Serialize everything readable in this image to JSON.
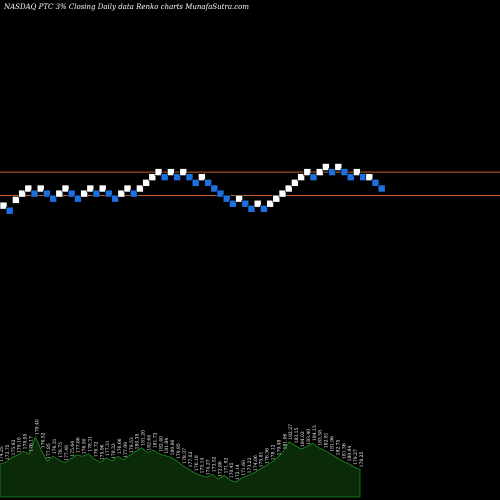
{
  "header": {
    "title": "NASDAQ PTC",
    "subtitle": "3% Closing Daily data Renko charts MunafaSutra.com"
  },
  "colors": {
    "background": "#000000",
    "up_brick": "#ffffff",
    "down_brick": "#1e6fe0",
    "reference_line": "#c0602a",
    "volume_fill": "#0a2a0a",
    "volume_stroke": "#1e8a1e"
  },
  "chart_data": {
    "type": "renko",
    "brick_percent": 3,
    "reference_lines": [
      183.2,
      179.5
    ],
    "ylim": [
      163,
      193
    ],
    "bricks": [
      {
        "dir": "up",
        "value": 177.9
      },
      {
        "dir": "down",
        "value": 177.1
      },
      {
        "dir": "up",
        "value": 178.8
      },
      {
        "dir": "up",
        "value": 179.8
      },
      {
        "dir": "up",
        "value": 180.6
      },
      {
        "dir": "down",
        "value": 179.8
      },
      {
        "dir": "up",
        "value": 180.6
      },
      {
        "dir": "down",
        "value": 179.8
      },
      {
        "dir": "down",
        "value": 179.0
      },
      {
        "dir": "up",
        "value": 179.8
      },
      {
        "dir": "up",
        "value": 180.6
      },
      {
        "dir": "down",
        "value": 179.8
      },
      {
        "dir": "down",
        "value": 179.0
      },
      {
        "dir": "up",
        "value": 179.8
      },
      {
        "dir": "up",
        "value": 180.6
      },
      {
        "dir": "down",
        "value": 179.8
      },
      {
        "dir": "up",
        "value": 180.6
      },
      {
        "dir": "down",
        "value": 179.8
      },
      {
        "dir": "down",
        "value": 179.0
      },
      {
        "dir": "up",
        "value": 179.8
      },
      {
        "dir": "up",
        "value": 180.6
      },
      {
        "dir": "down",
        "value": 179.8
      },
      {
        "dir": "up",
        "value": 180.6
      },
      {
        "dir": "up",
        "value": 181.5
      },
      {
        "dir": "up",
        "value": 182.4
      },
      {
        "dir": "up",
        "value": 183.2
      },
      {
        "dir": "down",
        "value": 182.4
      },
      {
        "dir": "up",
        "value": 183.2
      },
      {
        "dir": "down",
        "value": 182.4
      },
      {
        "dir": "up",
        "value": 183.2
      },
      {
        "dir": "down",
        "value": 182.4
      },
      {
        "dir": "down",
        "value": 181.5
      },
      {
        "dir": "up",
        "value": 182.4
      },
      {
        "dir": "down",
        "value": 181.5
      },
      {
        "dir": "down",
        "value": 180.6
      },
      {
        "dir": "down",
        "value": 179.8
      },
      {
        "dir": "down",
        "value": 179.0
      },
      {
        "dir": "down",
        "value": 178.2
      },
      {
        "dir": "up",
        "value": 179.0
      },
      {
        "dir": "down",
        "value": 178.2
      },
      {
        "dir": "down",
        "value": 177.4
      },
      {
        "dir": "up",
        "value": 178.2
      },
      {
        "dir": "down",
        "value": 177.4
      },
      {
        "dir": "up",
        "value": 178.2
      },
      {
        "dir": "up",
        "value": 179.0
      },
      {
        "dir": "up",
        "value": 179.8
      },
      {
        "dir": "up",
        "value": 180.6
      },
      {
        "dir": "up",
        "value": 181.5
      },
      {
        "dir": "up",
        "value": 182.4
      },
      {
        "dir": "up",
        "value": 183.2
      },
      {
        "dir": "down",
        "value": 182.4
      },
      {
        "dir": "up",
        "value": 183.2
      },
      {
        "dir": "up",
        "value": 184.0
      },
      {
        "dir": "down",
        "value": 183.2
      },
      {
        "dir": "up",
        "value": 184.0
      },
      {
        "dir": "down",
        "value": 183.2
      },
      {
        "dir": "down",
        "value": 182.4
      },
      {
        "dir": "up",
        "value": 183.2
      },
      {
        "dir": "down",
        "value": 182.4
      },
      {
        "dir": "up",
        "value": 182.4
      },
      {
        "dir": "down",
        "value": 181.5
      },
      {
        "dir": "down",
        "value": 180.6
      }
    ],
    "volume": [
      {
        "value": 55,
        "label": "174.25"
      },
      {
        "value": 58,
        "label": "173.75"
      },
      {
        "value": 66,
        "label": "175.92"
      },
      {
        "value": 70,
        "label": "179.10"
      },
      {
        "value": 76,
        "label": "178.05"
      },
      {
        "value": 72,
        "label": "176.17"
      },
      {
        "value": 100,
        "label": "178.40"
      },
      {
        "value": 78,
        "label": "176.52"
      },
      {
        "value": 60,
        "label": "177.85"
      },
      {
        "value": 68,
        "label": "176.31"
      },
      {
        "value": 62,
        "label": "178.75"
      },
      {
        "value": 57,
        "label": "177.48"
      },
      {
        "value": 64,
        "label": "175.64"
      },
      {
        "value": 70,
        "label": "177.86"
      },
      {
        "value": 68,
        "label": "176.50"
      },
      {
        "value": 72,
        "label": "178.31"
      },
      {
        "value": 63,
        "label": "176.72"
      },
      {
        "value": 58,
        "label": "175.96"
      },
      {
        "value": 65,
        "label": "177.31"
      },
      {
        "value": 60,
        "label": "178.32"
      },
      {
        "value": 68,
        "label": "176.66"
      },
      {
        "value": 62,
        "label": "177.89"
      },
      {
        "value": 70,
        "label": "179.53"
      },
      {
        "value": 76,
        "label": "180.35"
      },
      {
        "value": 82,
        "label": "181.20"
      },
      {
        "value": 74,
        "label": "182.64"
      },
      {
        "value": 78,
        "label": "181.72"
      },
      {
        "value": 72,
        "label": "182.40"
      },
      {
        "value": 69,
        "label": "181.84"
      },
      {
        "value": 66,
        "label": "180.96"
      },
      {
        "value": 60,
        "label": "179.95"
      },
      {
        "value": 52,
        "label": "178.37"
      },
      {
        "value": 46,
        "label": "177.02"
      },
      {
        "value": 40,
        "label": "176.18"
      },
      {
        "value": 36,
        "label": "175.14"
      },
      {
        "value": 33,
        "label": "174.27"
      },
      {
        "value": 38,
        "label": "173.52"
      },
      {
        "value": 30,
        "label": "172.86"
      },
      {
        "value": 36,
        "label": "171.92"
      },
      {
        "value": 28,
        "label": "170.45"
      },
      {
        "value": 25,
        "label": "172.14"
      },
      {
        "value": 32,
        "label": "171.60"
      },
      {
        "value": 36,
        "label": "173.22"
      },
      {
        "value": 40,
        "label": "174.06"
      },
      {
        "value": 46,
        "label": "175.81"
      },
      {
        "value": 52,
        "label": "176.36"
      },
      {
        "value": 58,
        "label": "178.12"
      },
      {
        "value": 66,
        "label": "179.48"
      },
      {
        "value": 76,
        "label": "181.06"
      },
      {
        "value": 92,
        "label": "182.27"
      },
      {
        "value": 86,
        "label": "183.15"
      },
      {
        "value": 80,
        "label": "184.02"
      },
      {
        "value": 84,
        "label": "183.40"
      },
      {
        "value": 90,
        "label": "184.13"
      },
      {
        "value": 82,
        "label": "183.58"
      },
      {
        "value": 78,
        "label": "182.81"
      },
      {
        "value": 72,
        "label": "181.96"
      },
      {
        "value": 66,
        "label": "182.75"
      },
      {
        "value": 60,
        "label": "181.36"
      },
      {
        "value": 56,
        "label": "180.94"
      },
      {
        "value": 50,
        "label": "179.27"
      },
      {
        "value": 46,
        "label": "178.25"
      }
    ]
  }
}
